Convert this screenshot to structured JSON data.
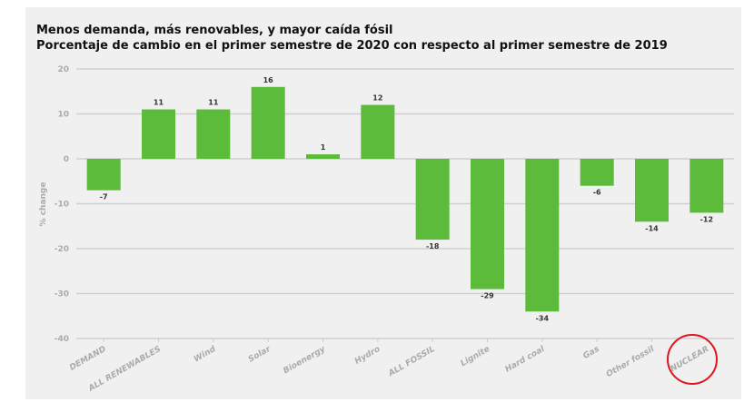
{
  "chart_data": {
    "type": "bar",
    "title": "Menos demanda, más renovables, y mayor caída fósil",
    "subtitle": "Porcentaje de cambio en el primer semestre de 2020 con respecto al primer semestre de 2019",
    "xlabel": "",
    "ylabel": "% change",
    "ylim": [
      -40,
      20
    ],
    "yticks": [
      20,
      10,
      0,
      -10,
      -20,
      -30,
      -40
    ],
    "grid": true,
    "categories": [
      "DEMAND",
      "ALL RENEWABLES",
      "Wind",
      "Solar",
      "Bioenergy",
      "Hydro",
      "ALL FOSSIL",
      "Lignite",
      "Hard coal",
      "Gas",
      "Other fossil",
      "NUCLEAR"
    ],
    "values": [
      -7,
      11,
      11,
      16,
      1,
      12,
      -18,
      -29,
      -34,
      -6,
      -14,
      -12
    ],
    "bar_color": "#5cbb3a",
    "annotation": {
      "type": "circle",
      "target": "NUCLEAR",
      "color": "#e0141e"
    }
  }
}
